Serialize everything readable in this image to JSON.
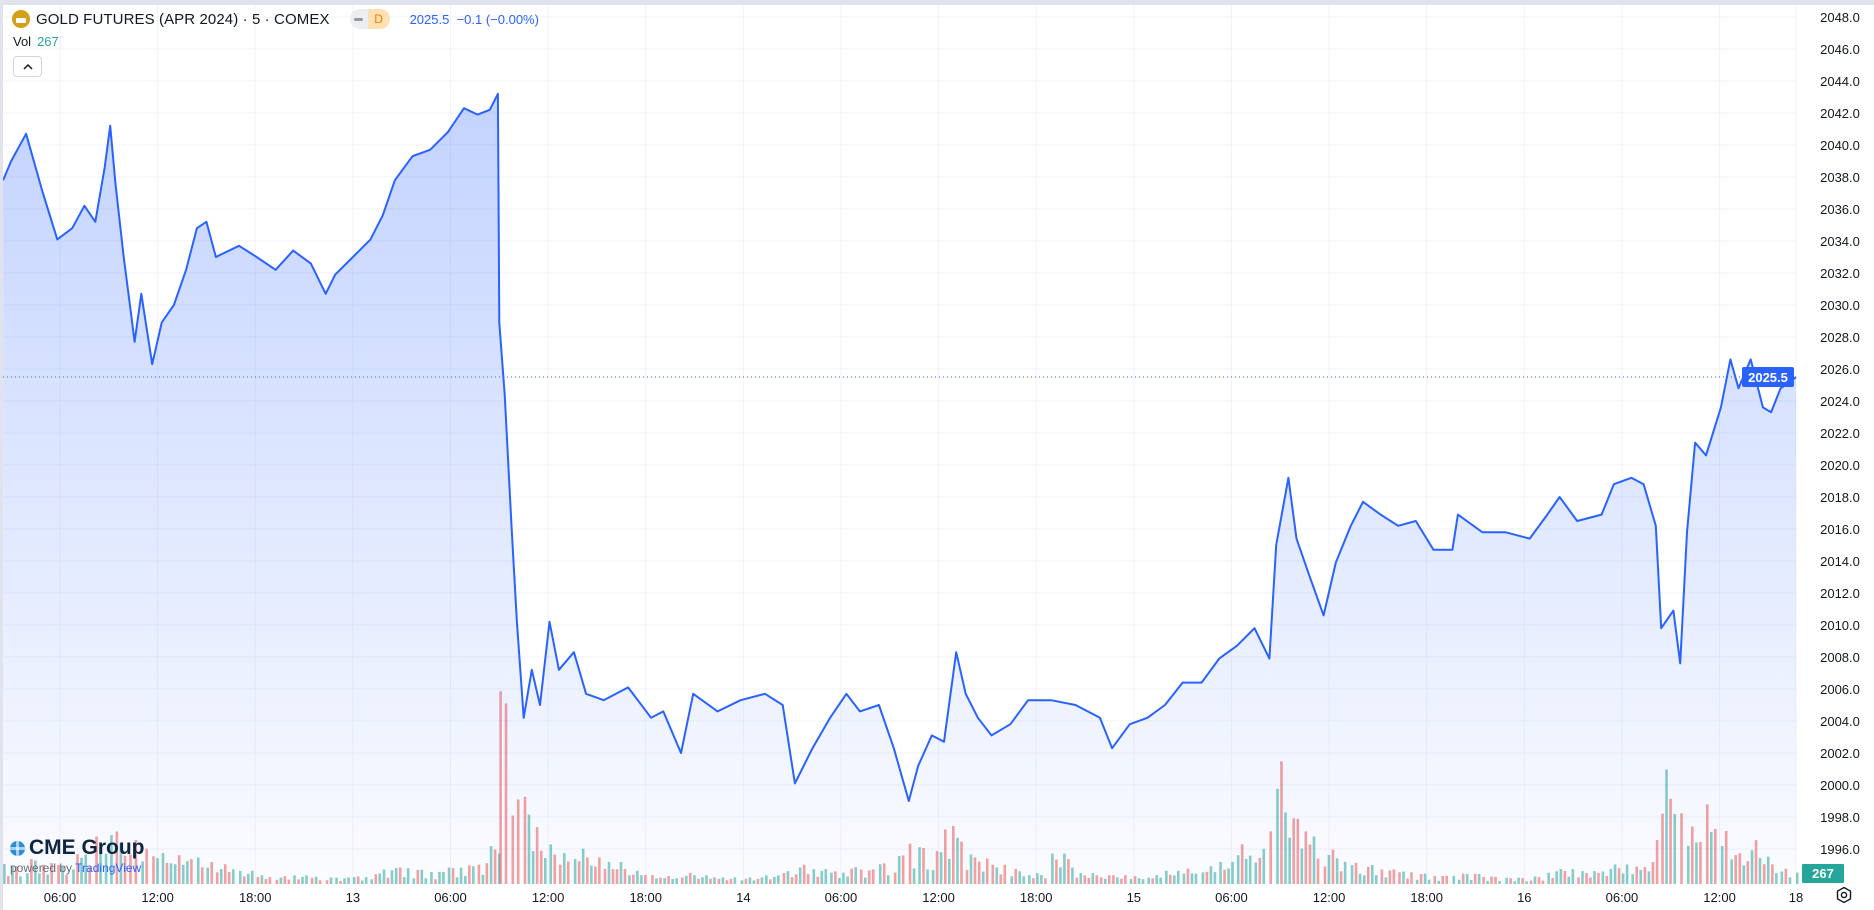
{
  "header": {
    "title": "GOLD FUTURES (APR 2024) · 5 · COMEX",
    "badge": "D",
    "last_price": "2025.5",
    "change": "−0.1 (−0.00%)",
    "vol_label": "Vol",
    "vol_value": "267",
    "collapse_icon": "chevron-up-icon"
  },
  "branding": {
    "logo": "CME Group",
    "powered_by": "powered by",
    "platform": "TradingView"
  },
  "colors": {
    "line": "#2962ff",
    "volume_up": "#26a69a",
    "volume_down": "#ef5350",
    "logo_gold": "#d4a017"
  },
  "chart_data": {
    "type": "area",
    "y_ticks": [
      "1996.0",
      "1998.0",
      "2000.0",
      "2002.0",
      "2004.0",
      "2006.0",
      "2008.0",
      "2010.0",
      "2012.0",
      "2014.0",
      "2016.0",
      "2018.0",
      "2020.0",
      "2022.0",
      "2024.0",
      "2026.0",
      "2028.0",
      "2030.0",
      "2032.0",
      "2034.0",
      "2036.0",
      "2038.0",
      "2040.0",
      "2042.0",
      "2044.0",
      "2046.0",
      "2048.0"
    ],
    "ylim": [
      1996,
      2048
    ],
    "x_ticks": [
      {
        "t": "12 06:00",
        "label": "06:00"
      },
      {
        "t": "12 12:00",
        "label": "12:00"
      },
      {
        "t": "12 18:00",
        "label": "18:00"
      },
      {
        "t": "13 00:00",
        "label": "13"
      },
      {
        "t": "13 06:00",
        "label": "06:00"
      },
      {
        "t": "13 12:00",
        "label": "12:00"
      },
      {
        "t": "13 18:00",
        "label": "18:00"
      },
      {
        "t": "14 00:00",
        "label": "14"
      },
      {
        "t": "14 06:00",
        "label": "06:00"
      },
      {
        "t": "14 12:00",
        "label": "12:00"
      },
      {
        "t": "14 18:00",
        "label": "18:00"
      },
      {
        "t": "15 00:00",
        "label": "15"
      },
      {
        "t": "15 06:00",
        "label": "06:00"
      },
      {
        "t": "15 12:00",
        "label": "12:00"
      },
      {
        "t": "15 18:00",
        "label": "18:00"
      },
      {
        "t": "16 00:00",
        "label": "16"
      },
      {
        "t": "16 06:00",
        "label": "06:00"
      },
      {
        "t": "16 12:00",
        "label": "12:00"
      },
      {
        "t": "18 18:00",
        "label": "18"
      }
    ],
    "grid": true,
    "last_price_label": "2025.5",
    "last_volume_label": "267",
    "points": [
      {
        "t": "12 02:30",
        "p": 2037.8,
        "v": 500
      },
      {
        "t": "12 03:00",
        "p": 2039.0,
        "v": 450
      },
      {
        "t": "12 03:55",
        "p": 2040.7,
        "v": 600
      },
      {
        "t": "12 04:55",
        "p": 2037.1,
        "v": 500
      },
      {
        "t": "12 05:50",
        "p": 2034.1,
        "v": 450
      },
      {
        "t": "12 06:45",
        "p": 2034.8,
        "v": 700
      },
      {
        "t": "12 07:30",
        "p": 2036.2,
        "v": 800
      },
      {
        "t": "12 08:10",
        "p": 2035.2,
        "v": 1100
      },
      {
        "t": "12 08:45",
        "p": 2038.6,
        "v": 1300
      },
      {
        "t": "12 09:05",
        "p": 2041.2,
        "v": 1400
      },
      {
        "t": "12 09:25",
        "p": 2037.5,
        "v": 1200
      },
      {
        "t": "12 09:55",
        "p": 2033.0,
        "v": 1100
      },
      {
        "t": "12 10:15",
        "p": 2030.4,
        "v": 900
      },
      {
        "t": "12 10:35",
        "p": 2027.7,
        "v": 1000
      },
      {
        "t": "12 11:00",
        "p": 2030.7,
        "v": 800
      },
      {
        "t": "12 11:40",
        "p": 2026.3,
        "v": 900
      },
      {
        "t": "12 12:15",
        "p": 2028.9,
        "v": 700
      },
      {
        "t": "12 13:00",
        "p": 2030.0,
        "v": 650
      },
      {
        "t": "12 13:45",
        "p": 2032.2,
        "v": 800
      },
      {
        "t": "12 14:25",
        "p": 2034.8,
        "v": 600
      },
      {
        "t": "12 15:00",
        "p": 2035.2,
        "v": 500
      },
      {
        "t": "12 15:35",
        "p": 2033.0,
        "v": 450
      },
      {
        "t": "12 17:00",
        "p": 2033.7,
        "v": 300
      },
      {
        "t": "12 18:05",
        "p": 2033.0,
        "v": 200
      },
      {
        "t": "12 19:15",
        "p": 2032.2,
        "v": 180
      },
      {
        "t": "12 20:20",
        "p": 2033.4,
        "v": 200
      },
      {
        "t": "12 21:25",
        "p": 2032.6,
        "v": 170
      },
      {
        "t": "12 22:20",
        "p": 2030.7,
        "v": 180
      },
      {
        "t": "12 22:55",
        "p": 2031.9,
        "v": 150
      },
      {
        "t": "13 00:00",
        "p": 2033.0,
        "v": 180
      },
      {
        "t": "13 01:05",
        "p": 2034.1,
        "v": 250
      },
      {
        "t": "13 01:50",
        "p": 2035.6,
        "v": 350
      },
      {
        "t": "13 02:35",
        "p": 2037.8,
        "v": 400
      },
      {
        "t": "13 03:40",
        "p": 2039.3,
        "v": 350
      },
      {
        "t": "13 04:45",
        "p": 2039.7,
        "v": 300
      },
      {
        "t": "13 05:50",
        "p": 2040.8,
        "v": 400
      },
      {
        "t": "13 06:50",
        "p": 2042.3,
        "v": 450
      },
      {
        "t": "13 07:40",
        "p": 2041.9,
        "v": 500
      },
      {
        "t": "13 08:25",
        "p": 2042.2,
        "v": 900
      },
      {
        "t": "13 08:55",
        "p": 2043.2,
        "v": 1500
      },
      {
        "t": "13 09:00",
        "p": 2028.9,
        "v": 5200
      },
      {
        "t": "13 09:20",
        "p": 2024.4,
        "v": 4200
      },
      {
        "t": "13 09:45",
        "p": 2016.2,
        "v": 3000
      },
      {
        "t": "13 10:05",
        "p": 2010.2,
        "v": 2400
      },
      {
        "t": "13 10:30",
        "p": 2004.2,
        "v": 2000
      },
      {
        "t": "13 11:00",
        "p": 2007.2,
        "v": 1300
      },
      {
        "t": "13 11:30",
        "p": 2005.0,
        "v": 1000
      },
      {
        "t": "13 12:05",
        "p": 2010.2,
        "v": 900
      },
      {
        "t": "13 12:40",
        "p": 2007.2,
        "v": 700
      },
      {
        "t": "13 13:35",
        "p": 2008.3,
        "v": 800
      },
      {
        "t": "13 14:20",
        "p": 2005.7,
        "v": 600
      },
      {
        "t": "13 15:25",
        "p": 2005.3,
        "v": 500
      },
      {
        "t": "13 16:55",
        "p": 2006.1,
        "v": 300
      },
      {
        "t": "13 18:20",
        "p": 2004.2,
        "v": 200
      },
      {
        "t": "13 19:05",
        "p": 2004.6,
        "v": 180
      },
      {
        "t": "13 20:10",
        "p": 2002.0,
        "v": 250
      },
      {
        "t": "13 20:55",
        "p": 2005.7,
        "v": 200
      },
      {
        "t": "13 22:25",
        "p": 2004.6,
        "v": 150
      },
      {
        "t": "13 23:50",
        "p": 2005.3,
        "v": 150
      },
      {
        "t": "14 01:20",
        "p": 2005.7,
        "v": 200
      },
      {
        "t": "14 02:25",
        "p": 2005.0,
        "v": 300
      },
      {
        "t": "14 03:10",
        "p": 2000.1,
        "v": 450
      },
      {
        "t": "14 04:15",
        "p": 2002.3,
        "v": 350
      },
      {
        "t": "14 05:20",
        "p": 2004.2,
        "v": 300
      },
      {
        "t": "14 06:20",
        "p": 2005.7,
        "v": 400
      },
      {
        "t": "14 07:10",
        "p": 2004.6,
        "v": 350
      },
      {
        "t": "14 08:20",
        "p": 2005.0,
        "v": 500
      },
      {
        "t": "14 09:15",
        "p": 2002.3,
        "v": 700
      },
      {
        "t": "14 10:10",
        "p": 1999.0,
        "v": 1000
      },
      {
        "t": "14 10:45",
        "p": 2001.2,
        "v": 900
      },
      {
        "t": "14 11:35",
        "p": 2003.1,
        "v": 800
      },
      {
        "t": "14 12:20",
        "p": 2002.7,
        "v": 1400
      },
      {
        "t": "14 13:05",
        "p": 2008.3,
        "v": 1100
      },
      {
        "t": "14 13:40",
        "p": 2005.7,
        "v": 700
      },
      {
        "t": "14 14:25",
        "p": 2004.2,
        "v": 600
      },
      {
        "t": "14 15:15",
        "p": 2003.1,
        "v": 450
      },
      {
        "t": "14 16:25",
        "p": 2003.8,
        "v": 350
      },
      {
        "t": "14 17:30",
        "p": 2005.3,
        "v": 250
      },
      {
        "t": "14 18:55",
        "p": 2005.3,
        "v": 700
      },
      {
        "t": "14 20:25",
        "p": 2005.0,
        "v": 250
      },
      {
        "t": "14 21:55",
        "p": 2004.2,
        "v": 200
      },
      {
        "t": "14 22:40",
        "p": 2002.3,
        "v": 200
      },
      {
        "t": "14 23:45",
        "p": 2003.8,
        "v": 180
      },
      {
        "t": "15 00:50",
        "p": 2004.2,
        "v": 200
      },
      {
        "t": "15 01:55",
        "p": 2005.0,
        "v": 300
      },
      {
        "t": "15 03:00",
        "p": 2006.4,
        "v": 350
      },
      {
        "t": "15 04:10",
        "p": 2006.4,
        "v": 400
      },
      {
        "t": "15 05:15",
        "p": 2007.9,
        "v": 500
      },
      {
        "t": "15 06:20",
        "p": 2008.7,
        "v": 900
      },
      {
        "t": "15 07:25",
        "p": 2009.8,
        "v": 800
      },
      {
        "t": "15 08:20",
        "p": 2007.9,
        "v": 1200
      },
      {
        "t": "15 08:45",
        "p": 2015.0,
        "v": 2800
      },
      {
        "t": "15 09:30",
        "p": 2019.2,
        "v": 1900
      },
      {
        "t": "15 10:00",
        "p": 2015.4,
        "v": 1500
      },
      {
        "t": "15 10:45",
        "p": 2013.2,
        "v": 1100
      },
      {
        "t": "15 11:40",
        "p": 2010.6,
        "v": 800
      },
      {
        "t": "15 12:25",
        "p": 2013.9,
        "v": 600
      },
      {
        "t": "15 13:20",
        "p": 2016.2,
        "v": 500
      },
      {
        "t": "15 14:05",
        "p": 2017.7,
        "v": 450
      },
      {
        "t": "15 15:10",
        "p": 2016.9,
        "v": 350
      },
      {
        "t": "15 16:15",
        "p": 2016.2,
        "v": 300
      },
      {
        "t": "15 17:20",
        "p": 2016.5,
        "v": 250
      },
      {
        "t": "15 18:25",
        "p": 2014.7,
        "v": 200
      },
      {
        "t": "15 19:35",
        "p": 2014.7,
        "v": 200
      },
      {
        "t": "15 19:55",
        "p": 2016.9,
        "v": 250
      },
      {
        "t": "15 21:25",
        "p": 2015.8,
        "v": 180
      },
      {
        "t": "15 22:50",
        "p": 2015.8,
        "v": 150
      },
      {
        "t": "16 00:20",
        "p": 2015.4,
        "v": 180
      },
      {
        "t": "16 01:25",
        "p": 2016.9,
        "v": 300
      },
      {
        "t": "16 02:10",
        "p": 2018.0,
        "v": 350
      },
      {
        "t": "16 03:15",
        "p": 2016.5,
        "v": 300
      },
      {
        "t": "16 04:45",
        "p": 2016.9,
        "v": 350
      },
      {
        "t": "16 05:30",
        "p": 2018.8,
        "v": 450
      },
      {
        "t": "16 06:35",
        "p": 2019.2,
        "v": 400
      },
      {
        "t": "16 07:20",
        "p": 2018.8,
        "v": 500
      },
      {
        "t": "16 08:05",
        "p": 2016.2,
        "v": 1000
      },
      {
        "t": "16 08:25",
        "p": 2009.8,
        "v": 2600
      },
      {
        "t": "16 09:10",
        "p": 2010.9,
        "v": 2200
      },
      {
        "t": "16 09:35",
        "p": 2007.6,
        "v": 1600
      },
      {
        "t": "16 10:00",
        "p": 2015.8,
        "v": 1300
      },
      {
        "t": "16 10:30",
        "p": 2021.4,
        "v": 1400
      },
      {
        "t": "16 11:10",
        "p": 2020.6,
        "v": 1800
      },
      {
        "t": "16 12:05",
        "p": 2023.6,
        "v": 1200
      },
      {
        "t": "16 12:40",
        "p": 2026.6,
        "v": 900
      },
      {
        "t": "16 13:10",
        "p": 2024.8,
        "v": 700
      },
      {
        "t": "16 13:55",
        "p": 2026.6,
        "v": 1000
      },
      {
        "t": "16 14:40",
        "p": 2023.6,
        "v": 800
      },
      {
        "t": "16 15:10",
        "p": 2023.3,
        "v": 450
      },
      {
        "t": "16 15:45",
        "p": 2024.8,
        "v": 350
      },
      {
        "t": "16 16:15",
        "p": 2025.1,
        "v": 300
      },
      {
        "t": "16 16:45",
        "p": 2025.5,
        "v": 267
      }
    ]
  }
}
